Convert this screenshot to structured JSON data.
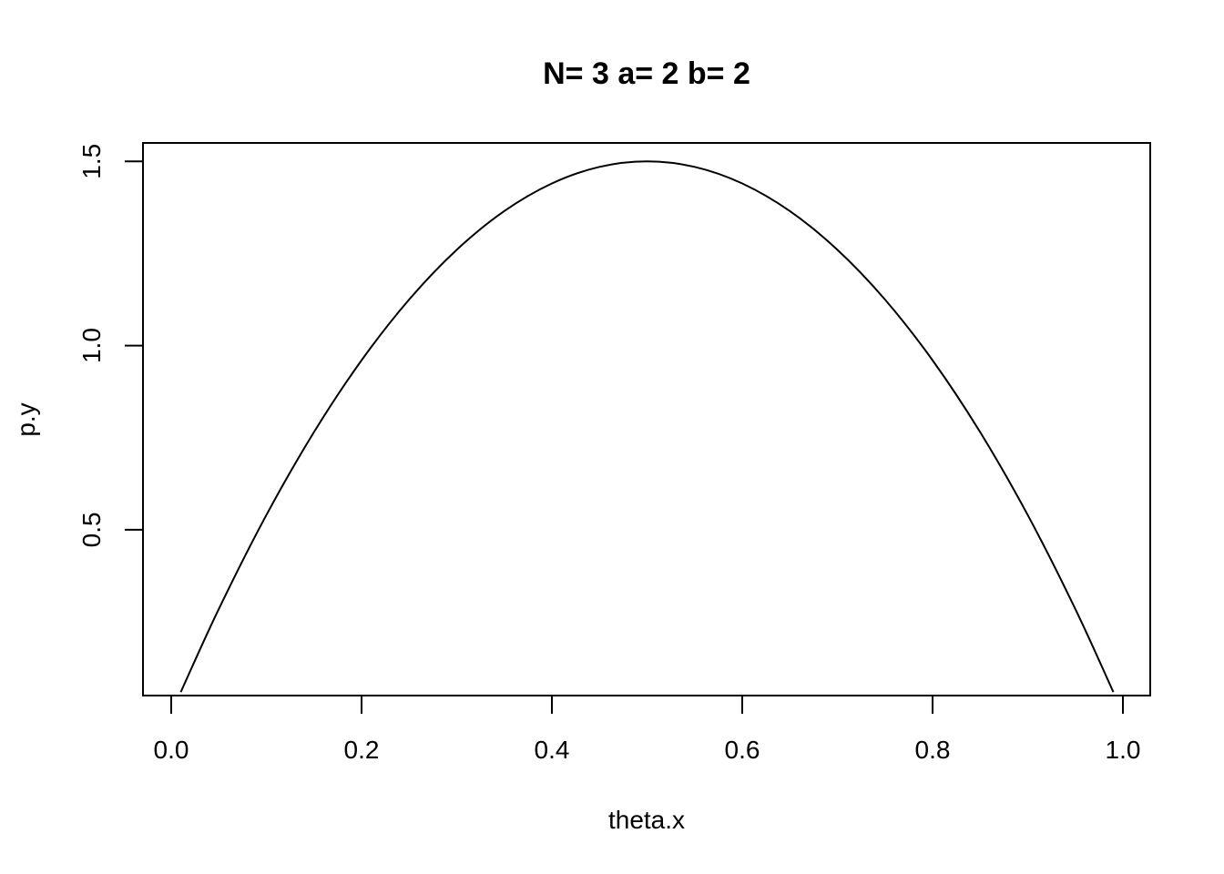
{
  "chart_data": {
    "type": "line",
    "title": "N= 3 a= 2 b= 2",
    "xlabel": "theta.x",
    "ylabel": "p.y",
    "xlim": [
      0.0,
      1.0
    ],
    "ylim": [
      0.05,
      1.55
    ],
    "xticks": [
      0.0,
      0.2,
      0.4,
      0.6,
      0.8,
      1.0
    ],
    "xtick_labels": [
      "0.0",
      "0.2",
      "0.4",
      "0.6",
      "0.8",
      "1.0"
    ],
    "yticks": [
      0.5,
      1.0,
      1.5
    ],
    "ytick_labels": [
      "0.5",
      "1.0",
      "1.5"
    ],
    "grid": false,
    "series": [
      {
        "x": [
          0.01,
          0.05,
          0.1,
          0.15,
          0.2,
          0.25,
          0.3,
          0.35,
          0.4,
          0.45,
          0.5,
          0.55,
          0.6,
          0.65,
          0.7,
          0.75,
          0.8,
          0.85,
          0.9,
          0.95,
          0.99
        ],
        "y": [
          0.0594,
          0.285,
          0.54,
          0.765,
          0.96,
          1.125,
          1.26,
          1.365,
          1.44,
          1.485,
          1.5,
          1.485,
          1.44,
          1.365,
          1.26,
          1.125,
          0.96,
          0.765,
          0.54,
          0.285,
          0.0594
        ]
      }
    ]
  }
}
